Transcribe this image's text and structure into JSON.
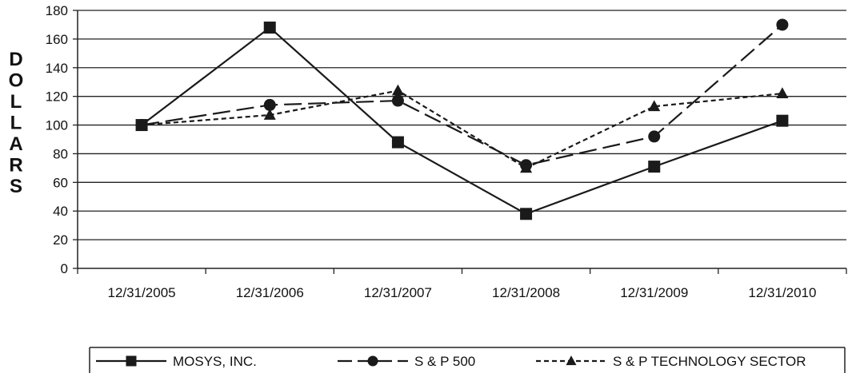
{
  "chart_data": {
    "type": "line",
    "title": "",
    "xlabel": "",
    "ylabel": "DOLLARS",
    "categories": [
      "12/31/2005",
      "12/31/2006",
      "12/31/2007",
      "12/31/2008",
      "12/31/2009",
      "12/31/2010"
    ],
    "ylim": [
      0,
      180
    ],
    "yticks": [
      0,
      20,
      40,
      60,
      80,
      100,
      120,
      140,
      160,
      180
    ],
    "grid": true,
    "legend_position": "bottom",
    "series": [
      {
        "name": "MOSYS, INC.",
        "marker": "square",
        "dash": "solid",
        "color": "#1a1a1a",
        "values": [
          100,
          168,
          88,
          38,
          71,
          103
        ]
      },
      {
        "name": "S & P 500",
        "marker": "circle",
        "dash": "long-dash",
        "color": "#1a1a1a",
        "values": [
          100,
          114,
          117,
          72,
          92,
          170
        ]
      },
      {
        "name": "S & P TECHNOLOGY SECTOR",
        "marker": "triangle",
        "dash": "short-dash",
        "color": "#1a1a1a",
        "values": [
          100,
          107,
          124,
          70,
          113,
          122
        ]
      }
    ]
  }
}
